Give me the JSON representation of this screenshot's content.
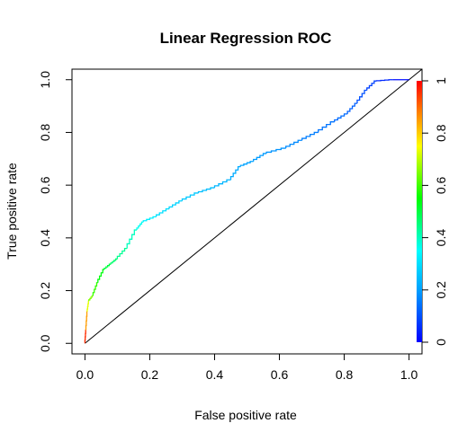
{
  "chart_data": {
    "type": "line",
    "title": "Linear Regression ROC",
    "xlabel": "False positive rate",
    "ylabel": "True positive rate",
    "xlim": [
      -0.04,
      1.04
    ],
    "ylim": [
      -0.04,
      1.04
    ],
    "x_ticks": [
      "0.0",
      "0.2",
      "0.4",
      "0.6",
      "0.8",
      "1.0"
    ],
    "y_ticks": [
      "0.0",
      "0.2",
      "0.4",
      "0.6",
      "0.8",
      "1.0"
    ],
    "x_tick_values": [
      0,
      0.2,
      0.4,
      0.6,
      0.8,
      1.0
    ],
    "y_tick_values": [
      0,
      0.2,
      0.4,
      0.6,
      0.8,
      1.0
    ],
    "colorbar": {
      "ticks": [
        "0",
        "0.2",
        "0.4",
        "0.6",
        "0.8",
        "1"
      ],
      "tick_values": [
        0,
        0.2,
        0.4,
        0.6,
        0.8,
        1.0
      ],
      "colormap": "rainbow"
    },
    "diagonal": {
      "from": [
        0,
        0
      ],
      "to": [
        1.04,
        1.04
      ]
    },
    "grid": false,
    "series": [
      {
        "color_by": "threshold",
        "points": [
          {
            "x": 0.0,
            "y": 0.0
          },
          {
            "x": 0.003,
            "y": 0.05
          },
          {
            "x": 0.007,
            "y": 0.12
          },
          {
            "x": 0.012,
            "y": 0.16
          },
          {
            "x": 0.025,
            "y": 0.18
          },
          {
            "x": 0.04,
            "y": 0.23
          },
          {
            "x": 0.06,
            "y": 0.28
          },
          {
            "x": 0.08,
            "y": 0.3
          },
          {
            "x": 0.1,
            "y": 0.32
          },
          {
            "x": 0.13,
            "y": 0.36
          },
          {
            "x": 0.16,
            "y": 0.43
          },
          {
            "x": 0.18,
            "y": 0.46
          },
          {
            "x": 0.22,
            "y": 0.48
          },
          {
            "x": 0.26,
            "y": 0.51
          },
          {
            "x": 0.3,
            "y": 0.54
          },
          {
            "x": 0.35,
            "y": 0.57
          },
          {
            "x": 0.4,
            "y": 0.59
          },
          {
            "x": 0.45,
            "y": 0.62
          },
          {
            "x": 0.48,
            "y": 0.67
          },
          {
            "x": 0.52,
            "y": 0.69
          },
          {
            "x": 0.56,
            "y": 0.72
          },
          {
            "x": 0.62,
            "y": 0.74
          },
          {
            "x": 0.67,
            "y": 0.77
          },
          {
            "x": 0.72,
            "y": 0.8
          },
          {
            "x": 0.77,
            "y": 0.84
          },
          {
            "x": 0.81,
            "y": 0.87
          },
          {
            "x": 0.84,
            "y": 0.91
          },
          {
            "x": 0.87,
            "y": 0.96
          },
          {
            "x": 0.9,
            "y": 0.995
          },
          {
            "x": 0.95,
            "y": 1.0
          },
          {
            "x": 1.0,
            "y": 1.0
          }
        ],
        "thresholds": [
          1.0,
          0.92,
          0.78,
          0.68,
          0.62,
          0.56,
          0.52,
          0.48,
          0.45,
          0.42,
          0.38,
          0.34,
          0.31,
          0.29,
          0.27,
          0.255,
          0.24,
          0.225,
          0.21,
          0.2,
          0.19,
          0.18,
          0.165,
          0.15,
          0.14,
          0.13,
          0.11,
          0.09,
          0.07,
          0.03,
          0.0
        ]
      }
    ]
  }
}
